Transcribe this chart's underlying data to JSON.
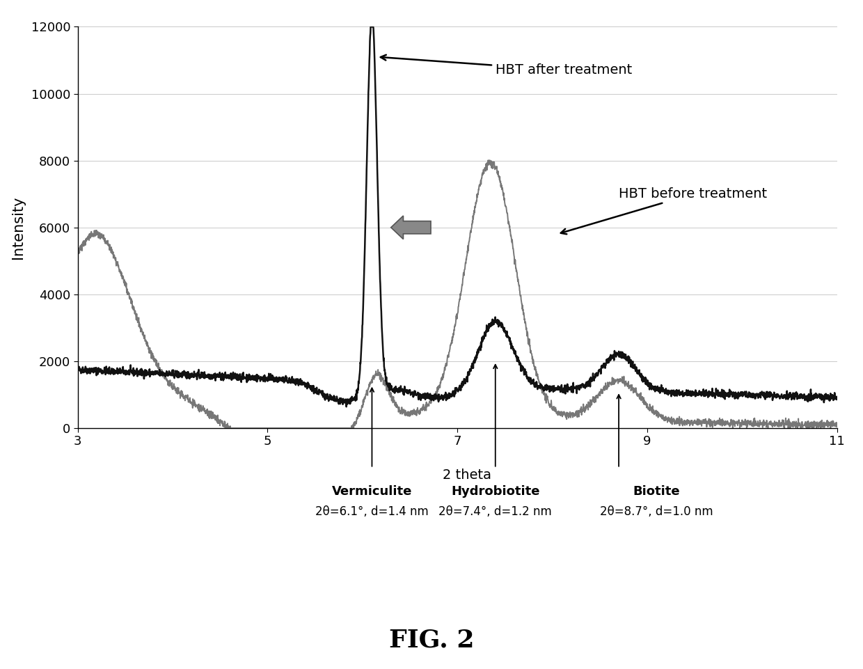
{
  "title": "FIG. 2",
  "xlabel": "2 theta",
  "ylabel": "Intensity",
  "xlim": [
    3,
    11
  ],
  "ylim": [
    0,
    12000
  ],
  "yticks": [
    0,
    2000,
    4000,
    6000,
    8000,
    10000,
    12000
  ],
  "xticks": [
    3,
    5,
    7,
    9,
    11
  ],
  "bg_color": "#ffffff",
  "grid_color": "#bbbbbb",
  "line_after_color": "#111111",
  "line_before_color": "#777777",
  "annotations": {
    "after_label": "HBT after treatment",
    "before_label": "HBT before treatment",
    "vermiculite_label": "Vermiculite",
    "vermiculite_sub": "2θ=6.1°, d=1.4 nm",
    "hydrobiotite_label": "Hydrobiotite",
    "hydrobiotite_sub": "2θ=7.4°, d=1.2 nm",
    "biotite_label": "Biotite",
    "biotite_sub": "2θ=8.7°, d=1.0 nm"
  }
}
